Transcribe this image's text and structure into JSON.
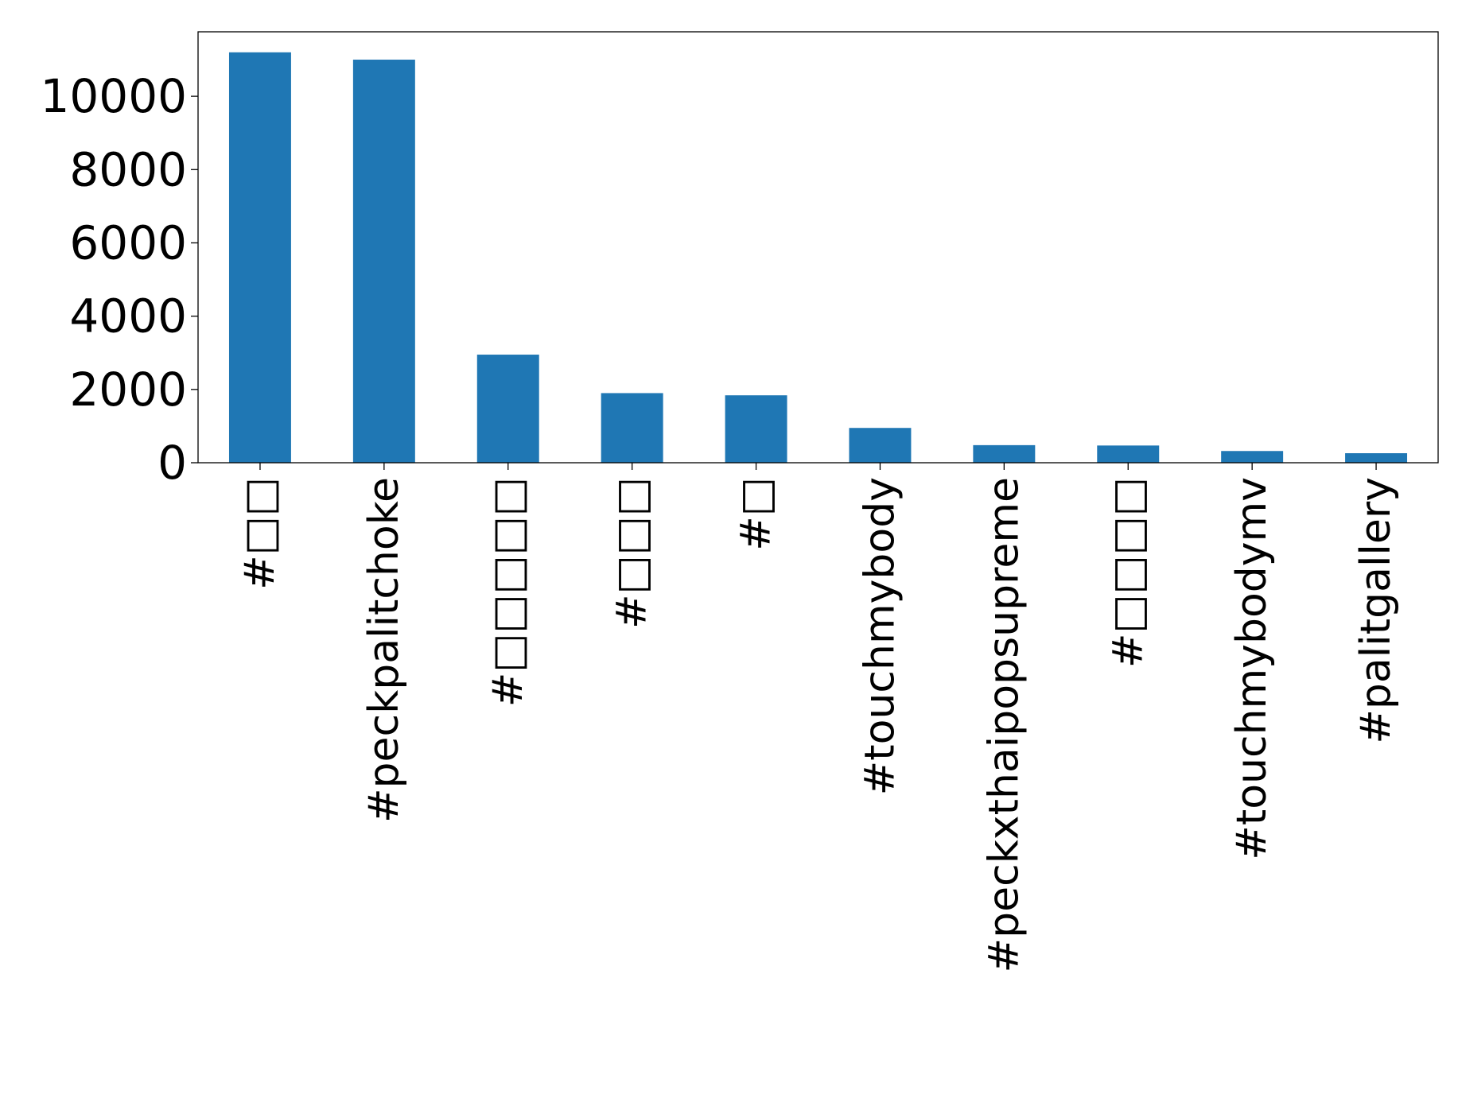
{
  "chart_data": {
    "type": "bar",
    "title": "",
    "xlabel": "",
    "ylabel": "",
    "categories": [
      "#□□",
      "#peckpalitchoke",
      "#□□□□□",
      "#□□□",
      "#□",
      "#touchmybody",
      "#peckxthaipopsupreme",
      "#□□□□",
      "#touchmybodymv",
      "#palitgallery"
    ],
    "values": [
      11200,
      11000,
      2950,
      1900,
      1840,
      950,
      480,
      470,
      320,
      260
    ],
    "ylim": [
      0,
      11760
    ],
    "yticks": [
      0,
      2000,
      4000,
      6000,
      8000,
      10000
    ],
    "ytick_labels": [
      "0",
      "2000",
      "4000",
      "6000",
      "8000",
      "10000"
    ],
    "grid": false,
    "bar_color": "#1f77b4"
  }
}
